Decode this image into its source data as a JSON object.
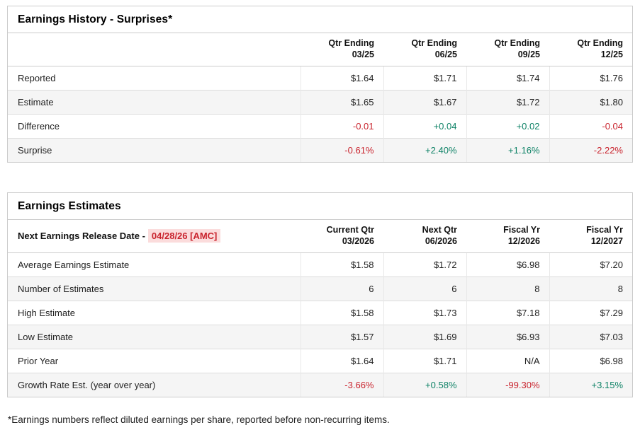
{
  "colors": {
    "positive": "#0e8266",
    "negative": "#c9232d",
    "date_highlight_bg": "#fbdcdc",
    "alt_row_bg": "#f5f5f5",
    "border": "#cbcbcb"
  },
  "earnings_history": {
    "title": "Earnings History - Surprises*",
    "columns": [
      {
        "line1": "Qtr Ending",
        "line2": "03/25"
      },
      {
        "line1": "Qtr Ending",
        "line2": "06/25"
      },
      {
        "line1": "Qtr Ending",
        "line2": "09/25"
      },
      {
        "line1": "Qtr Ending",
        "line2": "12/25"
      }
    ],
    "rows": [
      {
        "label": "Reported",
        "values": [
          "$1.64",
          "$1.71",
          "$1.74",
          "$1.76"
        ]
      },
      {
        "label": "Estimate",
        "values": [
          "$1.65",
          "$1.67",
          "$1.72",
          "$1.80"
        ]
      },
      {
        "label": "Difference",
        "values": [
          "-0.01",
          "+0.04",
          "+0.02",
          "-0.04"
        ]
      },
      {
        "label": "Surprise",
        "values": [
          "-0.61%",
          "+2.40%",
          "+1.16%",
          "-2.22%"
        ]
      }
    ]
  },
  "earnings_estimates": {
    "title": "Earnings Estimates",
    "release_date_label": "Next Earnings Release Date -",
    "release_date_value": "04/28/26 [AMC]",
    "columns": [
      {
        "line1": "Current Qtr",
        "line2": "03/2026"
      },
      {
        "line1": "Next Qtr",
        "line2": "06/2026"
      },
      {
        "line1": "Fiscal Yr",
        "line2": "12/2026"
      },
      {
        "line1": "Fiscal Yr",
        "line2": "12/2027"
      }
    ],
    "rows": [
      {
        "label": "Average Earnings Estimate",
        "values": [
          "$1.58",
          "$1.72",
          "$6.98",
          "$7.20"
        ]
      },
      {
        "label": "Number of Estimates",
        "values": [
          "6",
          "6",
          "8",
          "8"
        ]
      },
      {
        "label": "High Estimate",
        "values": [
          "$1.58",
          "$1.73",
          "$7.18",
          "$7.29"
        ]
      },
      {
        "label": "Low Estimate",
        "values": [
          "$1.57",
          "$1.69",
          "$6.93",
          "$7.03"
        ]
      },
      {
        "label": "Prior Year",
        "values": [
          "$1.64",
          "$1.71",
          "N/A",
          "$6.98"
        ]
      },
      {
        "label": "Growth Rate Est. (year over year)",
        "values": [
          "-3.66%",
          "+0.58%",
          "-99.30%",
          "+3.15%"
        ]
      }
    ]
  },
  "footnote": "*Earnings numbers reflect diluted earnings per share, reported before non-recurring items."
}
